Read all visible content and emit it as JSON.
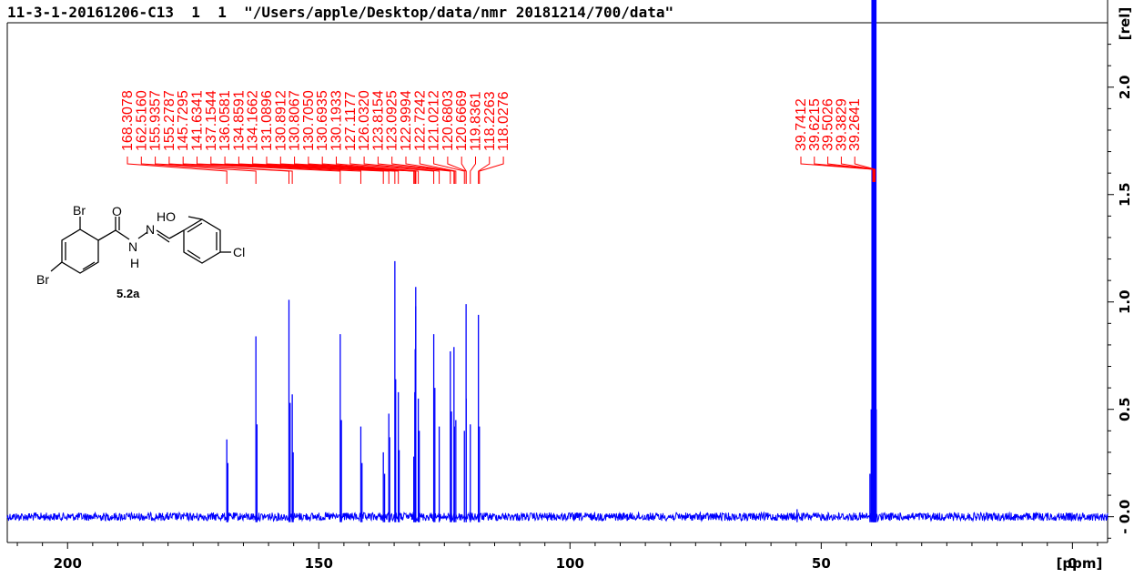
{
  "title": "11-3-1-20161206-C13  1  1  \"/Users/apple/Desktop/data/nmr 20181214/700/data\"",
  "compound_label": "5.2a",
  "structure_labels": {
    "br1": "Br",
    "br2": "Br",
    "o": "O",
    "n1": "N",
    "n2": "N",
    "h": "H",
    "ho": "HO",
    "cl": "Cl"
  },
  "chart_data": {
    "type": "line",
    "title": "",
    "xlabel": "[ppm]",
    "ylabel": "[rel]",
    "xlim": [
      212,
      -7
    ],
    "ylim": [
      -0.12,
      2.3
    ],
    "x_axis_reversed": true,
    "x_ticks": [
      200,
      150,
      100,
      50,
      0
    ],
    "y_ticks": [
      -0.0,
      0.5,
      1.0,
      1.5,
      2.0
    ],
    "y_tick_labels": [
      "- 0.0",
      "0.5",
      "1.0",
      "1.5",
      "2.0"
    ],
    "line_color": "#0000ff",
    "annotation_color": "#ff0000",
    "peak_labels_group1": [
      "168.3078",
      "162.5160",
      "155.9357",
      "155.2787",
      "145.7295",
      "141.6341",
      "137.1544",
      "136.0581",
      "134.8591",
      "134.1662",
      "131.0896",
      "130.8912",
      "130.8067",
      "130.7050",
      "130.6935",
      "130.1933",
      "127.1177",
      "126.0320",
      "123.8154",
      "123.0925",
      "122.9994",
      "122.7242",
      "121.0212",
      "120.6803",
      "120.6669",
      "119.8361",
      "118.2263",
      "118.0276"
    ],
    "peak_labels_group2": [
      "39.7412",
      "39.6215",
      "39.5026",
      "39.3829",
      "39.2641"
    ],
    "peaks": [
      {
        "ppm": 168.3078,
        "h": 0.36
      },
      {
        "ppm": 168.1,
        "h": 0.25
      },
      {
        "ppm": 162.516,
        "h": 0.84
      },
      {
        "ppm": 162.3,
        "h": 0.43
      },
      {
        "ppm": 155.9357,
        "h": 1.01
      },
      {
        "ppm": 155.7,
        "h": 0.53
      },
      {
        "ppm": 155.2787,
        "h": 0.57
      },
      {
        "ppm": 155.1,
        "h": 0.3
      },
      {
        "ppm": 145.7295,
        "h": 0.85
      },
      {
        "ppm": 145.5,
        "h": 0.45
      },
      {
        "ppm": 141.6341,
        "h": 0.42
      },
      {
        "ppm": 141.4,
        "h": 0.25
      },
      {
        "ppm": 137.1544,
        "h": 0.3
      },
      {
        "ppm": 136.9,
        "h": 0.2
      },
      {
        "ppm": 136.0581,
        "h": 0.48
      },
      {
        "ppm": 135.9,
        "h": 0.37
      },
      {
        "ppm": 134.8591,
        "h": 1.19
      },
      {
        "ppm": 134.7,
        "h": 0.64
      },
      {
        "ppm": 134.1662,
        "h": 0.58
      },
      {
        "ppm": 134.0,
        "h": 0.31
      },
      {
        "ppm": 131.0896,
        "h": 0.28
      },
      {
        "ppm": 130.8912,
        "h": 0.58
      },
      {
        "ppm": 130.8067,
        "h": 0.78
      },
      {
        "ppm": 130.705,
        "h": 1.07
      },
      {
        "ppm": 130.6935,
        "h": 0.98
      },
      {
        "ppm": 130.1933,
        "h": 0.55
      },
      {
        "ppm": 130.0,
        "h": 0.4
      },
      {
        "ppm": 127.1177,
        "h": 0.85
      },
      {
        "ppm": 126.9,
        "h": 0.6
      },
      {
        "ppm": 126.032,
        "h": 0.42
      },
      {
        "ppm": 123.8154,
        "h": 0.77
      },
      {
        "ppm": 123.6,
        "h": 0.49
      },
      {
        "ppm": 123.0925,
        "h": 0.79
      },
      {
        "ppm": 122.9994,
        "h": 0.42
      },
      {
        "ppm": 122.7242,
        "h": 0.45
      },
      {
        "ppm": 121.0212,
        "h": 0.4
      },
      {
        "ppm": 120.6803,
        "h": 0.99
      },
      {
        "ppm": 120.6669,
        "h": 0.55
      },
      {
        "ppm": 119.8361,
        "h": 0.43
      },
      {
        "ppm": 118.2263,
        "h": 0.94
      },
      {
        "ppm": 118.0276,
        "h": 0.42
      },
      {
        "ppm": 54.8,
        "h": 0.035
      },
      {
        "ppm": 40.3,
        "h": 0.2
      },
      {
        "ppm": 40.05,
        "h": 0.5
      },
      {
        "ppm": 39.7412,
        "h": 2.5
      },
      {
        "ppm": 39.6215,
        "h": 2.5
      },
      {
        "ppm": 39.5026,
        "h": 2.5
      },
      {
        "ppm": 39.3829,
        "h": 2.5
      },
      {
        "ppm": 39.2641,
        "h": 2.5
      },
      {
        "ppm": 39.05,
        "h": 0.5
      }
    ]
  }
}
